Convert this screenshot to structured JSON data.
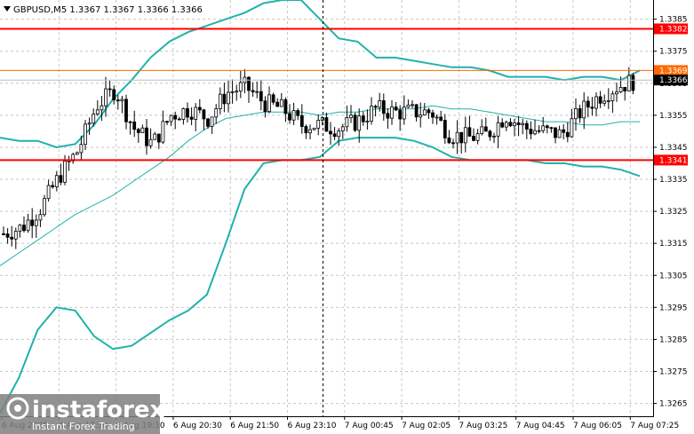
{
  "chart_data": {
    "type": "candlestick",
    "title": "GBPUSD,M5  1.3367 1.3367 1.3366 1.3366",
    "symbol": "GBPUSD,M5",
    "ohlc_header": [
      "1.3367",
      "1.3367",
      "1.3366",
      "1.3366"
    ],
    "ylim": [
      1.3261,
      1.3391
    ],
    "y_ticks": [
      "1.3385",
      "1.3375",
      "1.3365",
      "1.3355",
      "1.3345",
      "1.3335",
      "1.3325",
      "1.3315",
      "1.3305",
      "1.3295",
      "1.3285",
      "1.3275",
      "1.3265"
    ],
    "x_ticks": [
      "6 Aug 2025",
      "6 Aug 17:50",
      "6 Aug 19:10",
      "6 Aug 20:30",
      "6 Aug 21:50",
      "6 Aug 23:10",
      "7 Aug 00:45",
      "7 Aug 02:05",
      "7 Aug 03:25",
      "7 Aug 04:45",
      "7 Aug 06:05",
      "7 Aug 07:25"
    ],
    "levels": [
      {
        "price": 1.3382,
        "label": "1.3382",
        "color": "#ff0000"
      },
      {
        "price": 1.3369,
        "label": "1.3369",
        "color": "#ff6a00"
      },
      {
        "price": 1.3341,
        "label": "1.3341",
        "color": "#ff0000"
      }
    ],
    "current_price": {
      "price": 1.3366,
      "label": "1.3366"
    },
    "vertical_marker_x_label": "6 Aug 23:10",
    "upper_band": [
      1.3348,
      1.3347,
      1.3347,
      1.3345,
      1.3346,
      1.3352,
      1.336,
      1.3366,
      1.3373,
      1.3378,
      1.3381,
      1.3383,
      1.3385,
      1.3387,
      1.339,
      1.3391,
      1.3391,
      1.3385,
      1.3379,
      1.3378,
      1.3373,
      1.3373,
      1.3372,
      1.3371,
      1.337,
      1.337,
      1.3369,
      1.3367,
      1.3367,
      1.3367,
      1.3366,
      1.3367,
      1.3367,
      1.3366,
      1.3369
    ],
    "middle_line": [
      1.3308,
      1.3312,
      1.3316,
      1.332,
      1.3324,
      1.3327,
      1.333,
      1.3334,
      1.3338,
      1.3342,
      1.3347,
      1.3351,
      1.3354,
      1.3355,
      1.3356,
      1.3356,
      1.3356,
      1.3355,
      1.3356,
      1.3356,
      1.3357,
      1.3357,
      1.3357,
      1.3358,
      1.3357,
      1.3357,
      1.3356,
      1.3355,
      1.3354,
      1.3353,
      1.3353,
      1.3352,
      1.3352,
      1.3353,
      1.3353
    ],
    "lower_band": [
      1.3262,
      1.3273,
      1.3288,
      1.3295,
      1.3294,
      1.3286,
      1.3282,
      1.3283,
      1.3287,
      1.3291,
      1.3294,
      1.3299,
      1.3315,
      1.3332,
      1.334,
      1.3341,
      1.3341,
      1.3342,
      1.3347,
      1.3348,
      1.3348,
      1.3348,
      1.3347,
      1.3345,
      1.3342,
      1.3341,
      1.3341,
      1.3341,
      1.3341,
      1.334,
      1.334,
      1.3339,
      1.3339,
      1.3338,
      1.3336
    ],
    "close_path": [
      1.3318,
      1.332,
      1.3326,
      1.3336,
      1.3344,
      1.3358,
      1.3363,
      1.3351,
      1.3346,
      1.3355,
      1.3357,
      1.3354,
      1.3362,
      1.3364,
      1.3359,
      1.3357,
      1.3352,
      1.3352,
      1.3351,
      1.3353,
      1.3357,
      1.3356,
      1.3356,
      1.3356,
      1.3349,
      1.3348,
      1.3349,
      1.3355,
      1.3351,
      1.335,
      1.3349,
      1.3356,
      1.3361,
      1.3364,
      1.3366
    ],
    "bull_color": "#000000",
    "bear_color": "#000000",
    "band_color": "#20b2aa",
    "grid": "dashed"
  },
  "watermark": {
    "brand": "instaforex",
    "tagline": "Instant Forex Trading"
  }
}
